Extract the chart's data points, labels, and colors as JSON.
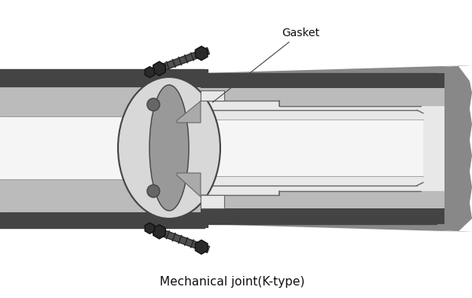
{
  "title": "Mechanical joint(K-type)",
  "gasket_label": "Gasket",
  "bg_color": "#ffffff",
  "figsize": [
    6.0,
    3.79
  ],
  "dpi": 100,
  "colors": {
    "white": "#ffffff",
    "off_white": "#f5f5f5",
    "very_light": "#e8e8e8",
    "light_gray": "#d0d0d0",
    "pipe_wall": "#bbbbbb",
    "mid_gray": "#999999",
    "dark_gray": "#666666",
    "darker_gray": "#444444",
    "outer_dark": "#555555",
    "soil_dark": "#888888",
    "black": "#111111",
    "bolt_dark": "#2a2a2a",
    "bolt_mid": "#505050",
    "gasket_gray": "#aaaaaa",
    "flange_light": "#d8d8d8",
    "flange_rim": "#c0c0c0"
  }
}
